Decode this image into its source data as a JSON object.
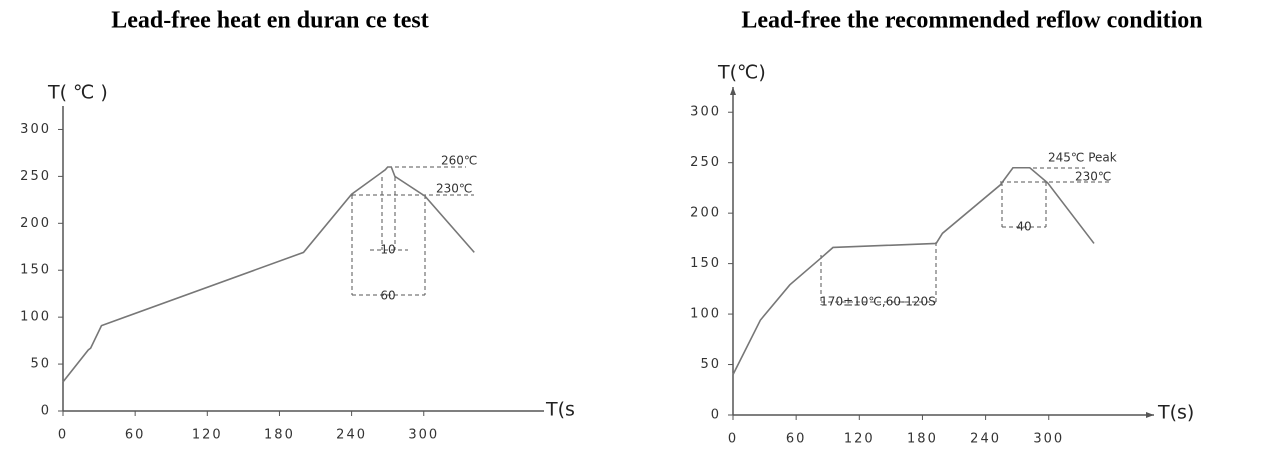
{
  "chart_data": [
    {
      "type": "line",
      "title": "Lead-free heat en duran ce test",
      "y_label": "T( ℃ )",
      "x_label": "T(s",
      "x": [
        0,
        21,
        23,
        32,
        200,
        240,
        268,
        270,
        273,
        276,
        301,
        342
      ],
      "values": [
        31,
        65,
        67,
        91,
        169,
        231,
        257,
        260,
        260,
        250,
        229,
        169
      ],
      "color": "#777777",
      "xlim": [
        0,
        400
      ],
      "xticks": [
        0,
        60,
        120,
        180,
        240,
        300
      ],
      "ylim": [
        0,
        325
      ],
      "yticks": [
        0,
        50,
        100,
        150,
        200,
        250,
        300
      ],
      "grid": false,
      "annotations": [
        "260℃",
        "230℃",
        "10",
        "60"
      ]
    },
    {
      "type": "line",
      "title": "Lead-free the recommended reflow condition",
      "y_label": "T(℃)",
      "x_label": "T(s)",
      "x": [
        0,
        26,
        54,
        83,
        95,
        193,
        199,
        254,
        266,
        282,
        299,
        343
      ],
      "values": [
        40,
        94,
        129,
        155,
        166,
        170,
        180,
        228,
        245,
        245,
        230,
        170
      ],
      "color": "#777777",
      "xlim": [
        0,
        400
      ],
      "xticks": [
        0,
        60,
        120,
        180,
        240,
        300
      ],
      "ylim": [
        0,
        325
      ],
      "yticks": [
        0,
        50,
        100,
        150,
        200,
        250,
        300
      ],
      "grid": false,
      "annotations": [
        "245℃ Peak",
        "230℃",
        "40",
        "170±10℃,60-120S"
      ]
    }
  ]
}
